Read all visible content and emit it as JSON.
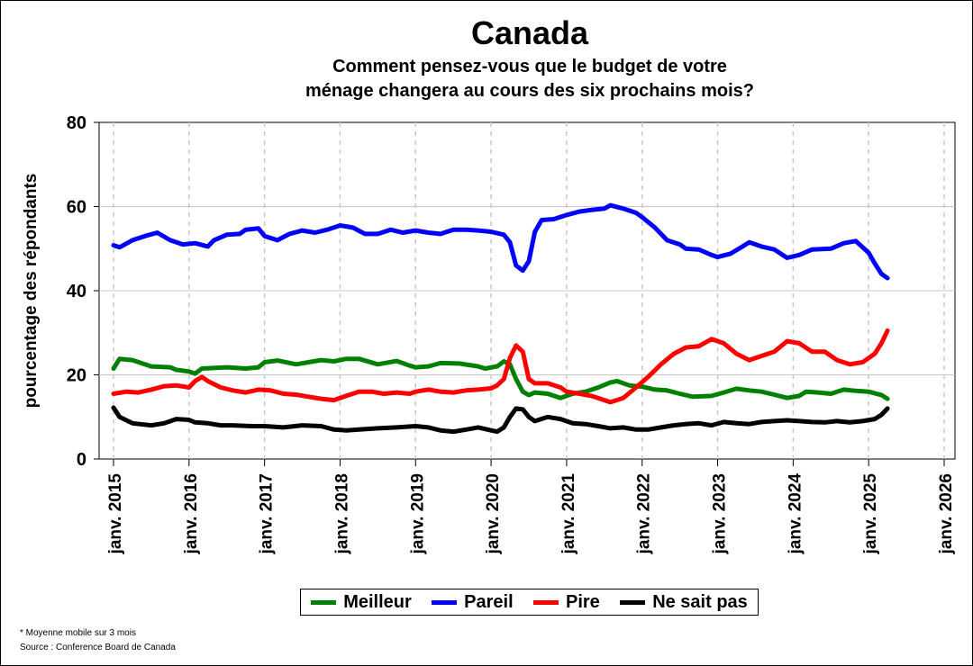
{
  "chart_data": {
    "type": "line",
    "title": "Canada",
    "subtitle_line1": "Comment pensez-vous que le budget de votre",
    "subtitle_line2": "ménage changera au cours des six prochains mois?",
    "ylabel": "pourcentage des répondants",
    "ylim": [
      0,
      80
    ],
    "yticks": [
      0,
      20,
      40,
      60,
      80
    ],
    "xlim": [
      2015,
      2026
    ],
    "xticks": [
      {
        "year": 2015,
        "label": "janv. 2015"
      },
      {
        "year": 2016,
        "label": "janv. 2016"
      },
      {
        "year": 2017,
        "label": "janv. 2017"
      },
      {
        "year": 2018,
        "label": "janv. 2018"
      },
      {
        "year": 2019,
        "label": "janv. 2019"
      },
      {
        "year": 2020,
        "label": "janv. 2020"
      },
      {
        "year": 2021,
        "label": "janv. 2021"
      },
      {
        "year": 2022,
        "label": "janv. 2022"
      },
      {
        "year": 2023,
        "label": "janv. 2023"
      },
      {
        "year": 2024,
        "label": "janv. 2024"
      },
      {
        "year": 2025,
        "label": "janv. 2025"
      },
      {
        "year": 2026,
        "label": "janv. 2026"
      }
    ],
    "grid": true,
    "legend_position": "bottom",
    "series": [
      {
        "name": "Meilleur",
        "color": "#008000",
        "points": [
          [
            2015.0,
            21.5
          ],
          [
            2015.08,
            23.8
          ],
          [
            2015.25,
            23.5
          ],
          [
            2015.5,
            22.0
          ],
          [
            2015.75,
            21.8
          ],
          [
            2015.83,
            21.2
          ],
          [
            2016.0,
            20.8
          ],
          [
            2016.08,
            20.3
          ],
          [
            2016.17,
            21.5
          ],
          [
            2016.5,
            21.8
          ],
          [
            2016.75,
            21.5
          ],
          [
            2016.92,
            21.8
          ],
          [
            2017.0,
            23.0
          ],
          [
            2017.17,
            23.4
          ],
          [
            2017.42,
            22.5
          ],
          [
            2017.58,
            23.0
          ],
          [
            2017.75,
            23.5
          ],
          [
            2017.92,
            23.2
          ],
          [
            2018.08,
            23.8
          ],
          [
            2018.25,
            23.8
          ],
          [
            2018.5,
            22.5
          ],
          [
            2018.75,
            23.3
          ],
          [
            2018.92,
            22.2
          ],
          [
            2019.0,
            21.8
          ],
          [
            2019.17,
            22.0
          ],
          [
            2019.33,
            22.8
          ],
          [
            2019.58,
            22.7
          ],
          [
            2019.83,
            22.0
          ],
          [
            2019.92,
            21.5
          ],
          [
            2020.08,
            22.0
          ],
          [
            2020.17,
            23.2
          ],
          [
            2020.25,
            22.5
          ],
          [
            2020.33,
            19.0
          ],
          [
            2020.42,
            16.0
          ],
          [
            2020.5,
            15.2
          ],
          [
            2020.58,
            15.8
          ],
          [
            2020.75,
            15.5
          ],
          [
            2020.92,
            14.5
          ],
          [
            2021.08,
            15.5
          ],
          [
            2021.25,
            16.0
          ],
          [
            2021.42,
            17.0
          ],
          [
            2021.58,
            18.2
          ],
          [
            2021.67,
            18.5
          ],
          [
            2021.83,
            17.5
          ],
          [
            2022.0,
            17.2
          ],
          [
            2022.17,
            16.5
          ],
          [
            2022.33,
            16.3
          ],
          [
            2022.5,
            15.5
          ],
          [
            2022.67,
            14.8
          ],
          [
            2022.92,
            15.0
          ],
          [
            2023.08,
            15.8
          ],
          [
            2023.25,
            16.7
          ],
          [
            2023.42,
            16.3
          ],
          [
            2023.58,
            16.0
          ],
          [
            2023.75,
            15.3
          ],
          [
            2023.92,
            14.5
          ],
          [
            2024.08,
            15.0
          ],
          [
            2024.17,
            16.0
          ],
          [
            2024.33,
            15.8
          ],
          [
            2024.5,
            15.5
          ],
          [
            2024.67,
            16.5
          ],
          [
            2024.83,
            16.2
          ],
          [
            2025.0,
            16.0
          ],
          [
            2025.17,
            15.2
          ],
          [
            2025.25,
            14.3
          ]
        ]
      },
      {
        "name": "Pareil",
        "color": "#0000ff",
        "points": [
          [
            2015.0,
            50.8
          ],
          [
            2015.08,
            50.3
          ],
          [
            2015.25,
            52.0
          ],
          [
            2015.42,
            53.0
          ],
          [
            2015.58,
            53.8
          ],
          [
            2015.75,
            52.0
          ],
          [
            2015.92,
            51.0
          ],
          [
            2016.08,
            51.3
          ],
          [
            2016.25,
            50.5
          ],
          [
            2016.33,
            52.0
          ],
          [
            2016.5,
            53.3
          ],
          [
            2016.67,
            53.5
          ],
          [
            2016.75,
            54.5
          ],
          [
            2016.92,
            54.8
          ],
          [
            2017.0,
            53.0
          ],
          [
            2017.17,
            52.0
          ],
          [
            2017.33,
            53.5
          ],
          [
            2017.5,
            54.3
          ],
          [
            2017.67,
            53.8
          ],
          [
            2017.83,
            54.5
          ],
          [
            2018.0,
            55.5
          ],
          [
            2018.17,
            55.0
          ],
          [
            2018.33,
            53.5
          ],
          [
            2018.5,
            53.5
          ],
          [
            2018.67,
            54.5
          ],
          [
            2018.83,
            53.8
          ],
          [
            2019.0,
            54.3
          ],
          [
            2019.17,
            53.8
          ],
          [
            2019.33,
            53.5
          ],
          [
            2019.5,
            54.5
          ],
          [
            2019.67,
            54.5
          ],
          [
            2019.83,
            54.3
          ],
          [
            2020.0,
            54.0
          ],
          [
            2020.17,
            53.3
          ],
          [
            2020.25,
            51.5
          ],
          [
            2020.33,
            46.0
          ],
          [
            2020.42,
            44.8
          ],
          [
            2020.5,
            47.0
          ],
          [
            2020.58,
            54.0
          ],
          [
            2020.67,
            56.8
          ],
          [
            2020.83,
            57.0
          ],
          [
            2021.0,
            58.0
          ],
          [
            2021.17,
            58.8
          ],
          [
            2021.33,
            59.2
          ],
          [
            2021.5,
            59.5
          ],
          [
            2021.58,
            60.3
          ],
          [
            2021.75,
            59.5
          ],
          [
            2021.92,
            58.5
          ],
          [
            2022.0,
            57.5
          ],
          [
            2022.17,
            55.0
          ],
          [
            2022.33,
            52.0
          ],
          [
            2022.5,
            51.0
          ],
          [
            2022.58,
            50.0
          ],
          [
            2022.75,
            49.8
          ],
          [
            2022.92,
            48.5
          ],
          [
            2023.0,
            48.0
          ],
          [
            2023.17,
            48.8
          ],
          [
            2023.33,
            50.5
          ],
          [
            2023.42,
            51.5
          ],
          [
            2023.58,
            50.5
          ],
          [
            2023.75,
            49.8
          ],
          [
            2023.92,
            47.8
          ],
          [
            2024.08,
            48.5
          ],
          [
            2024.25,
            49.8
          ],
          [
            2024.5,
            50.0
          ],
          [
            2024.67,
            51.3
          ],
          [
            2024.83,
            51.8
          ],
          [
            2025.0,
            49.0
          ],
          [
            2025.08,
            46.5
          ],
          [
            2025.17,
            44.0
          ],
          [
            2025.25,
            43.0
          ]
        ]
      },
      {
        "name": "Pire",
        "color": "#ff0000",
        "points": [
          [
            2015.0,
            15.5
          ],
          [
            2015.17,
            16.0
          ],
          [
            2015.33,
            15.8
          ],
          [
            2015.5,
            16.5
          ],
          [
            2015.67,
            17.3
          ],
          [
            2015.83,
            17.5
          ],
          [
            2016.0,
            17.0
          ],
          [
            2016.08,
            18.5
          ],
          [
            2016.17,
            19.5
          ],
          [
            2016.25,
            18.5
          ],
          [
            2016.42,
            17.0
          ],
          [
            2016.58,
            16.3
          ],
          [
            2016.75,
            15.8
          ],
          [
            2016.92,
            16.5
          ],
          [
            2017.08,
            16.3
          ],
          [
            2017.25,
            15.5
          ],
          [
            2017.42,
            15.3
          ],
          [
            2017.58,
            14.8
          ],
          [
            2017.75,
            14.3
          ],
          [
            2017.92,
            14.0
          ],
          [
            2018.08,
            15.0
          ],
          [
            2018.25,
            16.0
          ],
          [
            2018.42,
            16.0
          ],
          [
            2018.58,
            15.5
          ],
          [
            2018.75,
            15.8
          ],
          [
            2018.92,
            15.5
          ],
          [
            2019.0,
            16.0
          ],
          [
            2019.17,
            16.5
          ],
          [
            2019.33,
            16.0
          ],
          [
            2019.5,
            15.8
          ],
          [
            2019.67,
            16.3
          ],
          [
            2019.83,
            16.5
          ],
          [
            2020.0,
            16.8
          ],
          [
            2020.08,
            17.5
          ],
          [
            2020.17,
            19.0
          ],
          [
            2020.25,
            24.0
          ],
          [
            2020.33,
            27.0
          ],
          [
            2020.42,
            25.5
          ],
          [
            2020.5,
            19.0
          ],
          [
            2020.58,
            18.0
          ],
          [
            2020.75,
            18.0
          ],
          [
            2020.92,
            17.0
          ],
          [
            2021.0,
            16.0
          ],
          [
            2021.17,
            15.5
          ],
          [
            2021.33,
            15.0
          ],
          [
            2021.5,
            14.0
          ],
          [
            2021.58,
            13.5
          ],
          [
            2021.75,
            14.5
          ],
          [
            2021.92,
            17.0
          ],
          [
            2022.08,
            19.5
          ],
          [
            2022.25,
            22.5
          ],
          [
            2022.42,
            25.0
          ],
          [
            2022.58,
            26.5
          ],
          [
            2022.75,
            26.8
          ],
          [
            2022.92,
            28.5
          ],
          [
            2023.08,
            27.5
          ],
          [
            2023.25,
            25.0
          ],
          [
            2023.42,
            23.5
          ],
          [
            2023.58,
            24.5
          ],
          [
            2023.75,
            25.5
          ],
          [
            2023.92,
            28.0
          ],
          [
            2024.08,
            27.5
          ],
          [
            2024.25,
            25.5
          ],
          [
            2024.42,
            25.5
          ],
          [
            2024.58,
            23.5
          ],
          [
            2024.75,
            22.5
          ],
          [
            2024.92,
            23.0
          ],
          [
            2025.08,
            25.0
          ],
          [
            2025.17,
            27.5
          ],
          [
            2025.25,
            30.5
          ]
        ]
      },
      {
        "name": "Ne sait pas",
        "color": "#000000",
        "points": [
          [
            2015.0,
            12.2
          ],
          [
            2015.08,
            10.0
          ],
          [
            2015.25,
            8.5
          ],
          [
            2015.5,
            8.0
          ],
          [
            2015.67,
            8.5
          ],
          [
            2015.83,
            9.5
          ],
          [
            2016.0,
            9.3
          ],
          [
            2016.08,
            8.7
          ],
          [
            2016.25,
            8.5
          ],
          [
            2016.42,
            8.0
          ],
          [
            2016.58,
            8.0
          ],
          [
            2016.83,
            7.8
          ],
          [
            2017.0,
            7.8
          ],
          [
            2017.25,
            7.5
          ],
          [
            2017.5,
            8.0
          ],
          [
            2017.75,
            7.8
          ],
          [
            2017.92,
            7.0
          ],
          [
            2018.08,
            6.8
          ],
          [
            2018.25,
            7.0
          ],
          [
            2018.5,
            7.3
          ],
          [
            2018.75,
            7.5
          ],
          [
            2019.0,
            7.8
          ],
          [
            2019.17,
            7.5
          ],
          [
            2019.33,
            6.8
          ],
          [
            2019.5,
            6.5
          ],
          [
            2019.67,
            7.0
          ],
          [
            2019.83,
            7.5
          ],
          [
            2020.0,
            6.8
          ],
          [
            2020.08,
            6.5
          ],
          [
            2020.17,
            7.5
          ],
          [
            2020.25,
            10.0
          ],
          [
            2020.33,
            12.0
          ],
          [
            2020.42,
            11.8
          ],
          [
            2020.5,
            10.0
          ],
          [
            2020.58,
            9.0
          ],
          [
            2020.75,
            10.0
          ],
          [
            2020.92,
            9.5
          ],
          [
            2021.08,
            8.5
          ],
          [
            2021.25,
            8.3
          ],
          [
            2021.42,
            7.8
          ],
          [
            2021.58,
            7.3
          ],
          [
            2021.75,
            7.5
          ],
          [
            2021.92,
            7.0
          ],
          [
            2022.08,
            7.0
          ],
          [
            2022.25,
            7.5
          ],
          [
            2022.42,
            8.0
          ],
          [
            2022.58,
            8.3
          ],
          [
            2022.75,
            8.5
          ],
          [
            2022.92,
            8.0
          ],
          [
            2023.08,
            8.8
          ],
          [
            2023.25,
            8.5
          ],
          [
            2023.42,
            8.3
          ],
          [
            2023.58,
            8.8
          ],
          [
            2023.75,
            9.0
          ],
          [
            2023.92,
            9.2
          ],
          [
            2024.08,
            9.0
          ],
          [
            2024.25,
            8.8
          ],
          [
            2024.42,
            8.7
          ],
          [
            2024.58,
            9.0
          ],
          [
            2024.75,
            8.7
          ],
          [
            2024.92,
            9.0
          ],
          [
            2025.08,
            9.5
          ],
          [
            2025.17,
            10.5
          ],
          [
            2025.25,
            12.0
          ]
        ]
      }
    ]
  },
  "notes": {
    "line1": "* Moyenne mobile sur 3 mois",
    "line2": "Source : Conference Board de Canada"
  }
}
